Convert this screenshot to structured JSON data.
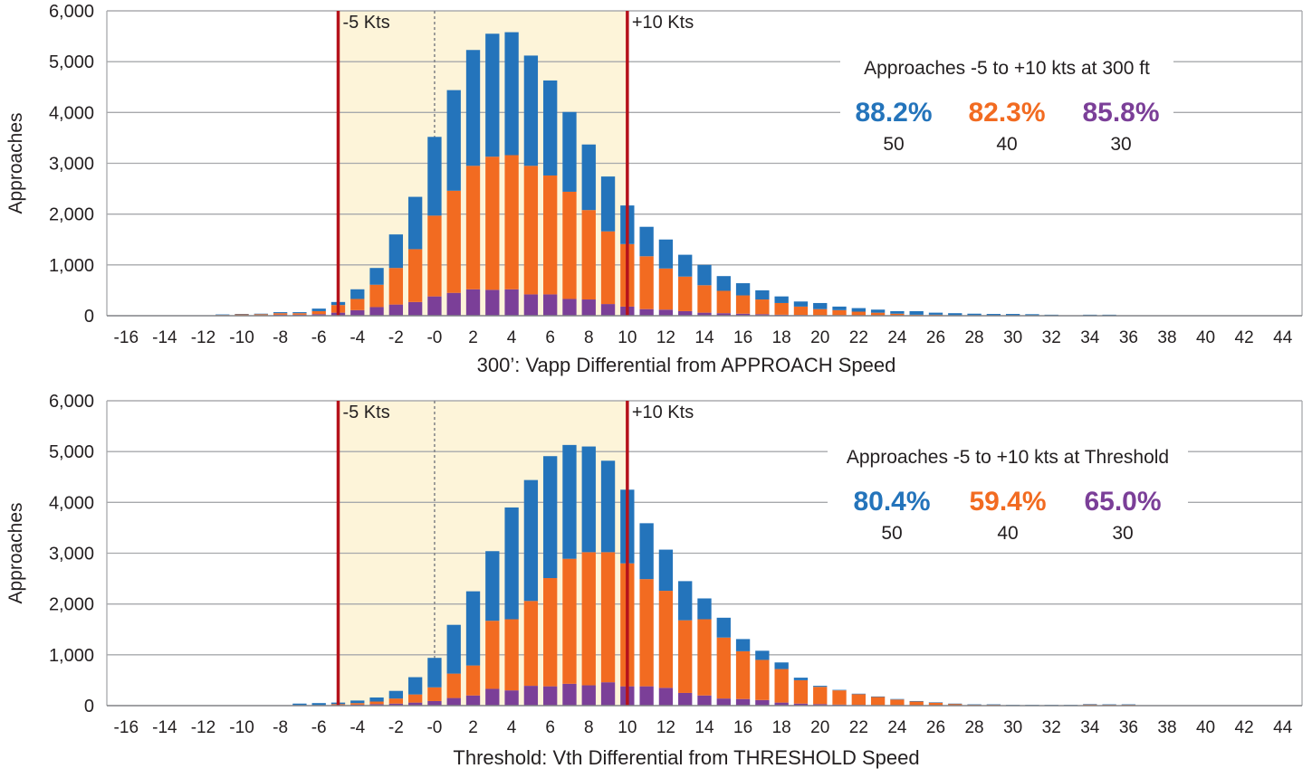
{
  "chart_data": [
    {
      "type": "bar",
      "stacked": true,
      "ylabel": "Approaches",
      "xlabel": "300’: Vapp Differential from APPROACH Speed",
      "ylim": [
        0,
        6000
      ],
      "yticks": [
        0,
        1000,
        2000,
        3000,
        4000,
        5000,
        6000
      ],
      "ytick_labels": [
        "0",
        "1,000",
        "2,000",
        "3,000",
        "4,000",
        "5,000",
        "6,000"
      ],
      "xlim": [
        -17,
        45
      ],
      "xticks": [
        -16,
        -14,
        -12,
        -10,
        -8,
        -6,
        -4,
        -2,
        0,
        2,
        4,
        6,
        8,
        10,
        12,
        14,
        16,
        18,
        20,
        22,
        24,
        26,
        28,
        30,
        32,
        34,
        36,
        38,
        40,
        42,
        44
      ],
      "xtick_labels": [
        "-16",
        "-14",
        "-12",
        "-10",
        "-8",
        "-6",
        "-4",
        "-2",
        "-0",
        "2",
        "4",
        "6",
        "8",
        "10",
        "12",
        "14",
        "16",
        "18",
        "20",
        "22",
        "24",
        "26",
        "28",
        "30",
        "32",
        "34",
        "36",
        "38",
        "40",
        "42",
        "44"
      ],
      "x": [
        -11,
        -10,
        -9,
        -8,
        -7,
        -6,
        -5,
        -4,
        -3,
        -2,
        -1,
        0,
        1,
        2,
        3,
        4,
        5,
        6,
        7,
        8,
        9,
        10,
        11,
        12,
        13,
        14,
        15,
        16,
        17,
        18,
        19,
        20,
        21,
        22,
        23,
        24,
        25,
        26,
        27,
        28,
        29,
        30,
        31,
        32,
        33,
        34,
        35
      ],
      "series": [
        {
          "name": "30",
          "color": "#7B3F98",
          "values": [
            10,
            10,
            10,
            20,
            20,
            30,
            60,
            110,
            170,
            220,
            270,
            380,
            450,
            520,
            510,
            520,
            420,
            420,
            330,
            320,
            230,
            180,
            130,
            120,
            90,
            60,
            50,
            40,
            30,
            20,
            15,
            10,
            10,
            5,
            5,
            5,
            0,
            0,
            0,
            0,
            0,
            0,
            0,
            0,
            0,
            0,
            0
          ]
        },
        {
          "name": "40",
          "color": "#F26B21",
          "values": [
            5,
            20,
            20,
            30,
            30,
            60,
            150,
            220,
            440,
            720,
            1040,
            1590,
            2010,
            2430,
            2620,
            2640,
            2530,
            2340,
            2110,
            1760,
            1430,
            1230,
            1040,
            810,
            680,
            540,
            440,
            360,
            290,
            230,
            165,
            120,
            100,
            75,
            55,
            35,
            20,
            20,
            10,
            10,
            5,
            5,
            5,
            0,
            0,
            0,
            0
          ]
        },
        {
          "name": "50",
          "color": "#2474BB",
          "values": [
            10,
            5,
            10,
            20,
            20,
            50,
            60,
            190,
            330,
            660,
            1030,
            1550,
            1980,
            2280,
            2420,
            2420,
            2170,
            1870,
            1570,
            1290,
            1080,
            760,
            580,
            570,
            430,
            400,
            290,
            240,
            180,
            130,
            100,
            120,
            70,
            70,
            60,
            50,
            70,
            40,
            40,
            30,
            30,
            30,
            25,
            20,
            5,
            20,
            20
          ]
        }
      ],
      "shaded_range": [
        -5,
        10
      ],
      "reference_lines": [
        {
          "x": -5,
          "label": "-5 Kts",
          "color": "#B5121B"
        },
        {
          "x": 10,
          "label": "+10 Kts",
          "color": "#B5121B"
        }
      ],
      "dashed_line_x": 0,
      "annotation": {
        "title": "Approaches -5 to +10 kts at 300 ft",
        "items": [
          {
            "value": "88.2%",
            "label": "50",
            "color": "#2474BB"
          },
          {
            "value": "82.3%",
            "label": "40",
            "color": "#F26B21"
          },
          {
            "value": "85.8%",
            "label": "30",
            "color": "#7B3F98"
          }
        ]
      }
    },
    {
      "type": "bar",
      "stacked": true,
      "ylabel": "Approaches",
      "xlabel": "Threshold: Vth Differential from THRESHOLD Speed",
      "ylim": [
        0,
        6000
      ],
      "yticks": [
        0,
        1000,
        2000,
        3000,
        4000,
        5000,
        6000
      ],
      "ytick_labels": [
        "0",
        "1,000",
        "2,000",
        "3,000",
        "4,000",
        "5,000",
        "6,000"
      ],
      "xlim": [
        -17,
        45
      ],
      "xticks": [
        -16,
        -14,
        -12,
        -10,
        -8,
        -6,
        -4,
        -2,
        0,
        2,
        4,
        6,
        8,
        10,
        12,
        14,
        16,
        18,
        20,
        22,
        24,
        26,
        28,
        30,
        32,
        34,
        36,
        38,
        40,
        42,
        44
      ],
      "xtick_labels": [
        "-16",
        "-14",
        "-12",
        "-10",
        "-8",
        "-6",
        "-4",
        "-2",
        "-0",
        "2",
        "4",
        "6",
        "8",
        "10",
        "12",
        "14",
        "16",
        "18",
        "20",
        "22",
        "24",
        "26",
        "28",
        "30",
        "32",
        "34",
        "36",
        "38",
        "40",
        "42",
        "44"
      ],
      "x": [
        -7,
        -6,
        -5,
        -4,
        -3,
        -2,
        -1,
        0,
        1,
        2,
        3,
        4,
        5,
        6,
        7,
        8,
        9,
        10,
        11,
        12,
        13,
        14,
        15,
        16,
        17,
        18,
        19,
        20,
        21,
        22,
        23,
        24,
        25,
        26,
        27,
        28,
        29,
        30,
        31,
        32,
        33,
        34,
        35,
        36
      ],
      "series": [
        {
          "name": "30",
          "color": "#7B3F98",
          "values": [
            5,
            5,
            10,
            20,
            30,
            40,
            60,
            90,
            150,
            200,
            330,
            300,
            390,
            380,
            430,
            400,
            460,
            380,
            380,
            350,
            250,
            200,
            140,
            130,
            110,
            60,
            40,
            30,
            20,
            15,
            10,
            10,
            5,
            5,
            5,
            0,
            0,
            0,
            0,
            0,
            0,
            0,
            0,
            0
          ]
        },
        {
          "name": "40",
          "color": "#F26B21",
          "values": [
            5,
            5,
            20,
            30,
            50,
            100,
            160,
            270,
            480,
            590,
            1340,
            1400,
            1670,
            2130,
            2460,
            2620,
            2560,
            2420,
            2110,
            1910,
            1430,
            1500,
            1200,
            940,
            790,
            660,
            460,
            340,
            280,
            210,
            160,
            110,
            75,
            55,
            30,
            20,
            20,
            10,
            10,
            10,
            10,
            25,
            20,
            20
          ]
        },
        {
          "name": "50",
          "color": "#2474BB",
          "values": [
            30,
            40,
            30,
            50,
            80,
            150,
            340,
            580,
            960,
            1460,
            1370,
            2200,
            2380,
            2400,
            2240,
            2080,
            1800,
            1450,
            1100,
            810,
            770,
            410,
            390,
            240,
            180,
            130,
            50,
            20,
            10,
            10,
            10,
            10,
            10,
            5,
            5,
            5,
            5,
            5,
            5,
            5,
            5,
            5,
            5,
            5
          ]
        }
      ],
      "shaded_range": [
        -5,
        10
      ],
      "reference_lines": [
        {
          "x": -5,
          "label": "-5 Kts",
          "color": "#B5121B"
        },
        {
          "x": 10,
          "label": "+10 Kts",
          "color": "#B5121B"
        }
      ],
      "dashed_line_x": 0,
      "annotation": {
        "title": "Approaches -5 to +10 kts at Threshold",
        "items": [
          {
            "value": "80.4%",
            "label": "50",
            "color": "#2474BB"
          },
          {
            "value": "59.4%",
            "label": "40",
            "color": "#F26B21"
          },
          {
            "value": "65.0%",
            "label": "30",
            "color": "#7B3F98"
          }
        ]
      }
    }
  ]
}
